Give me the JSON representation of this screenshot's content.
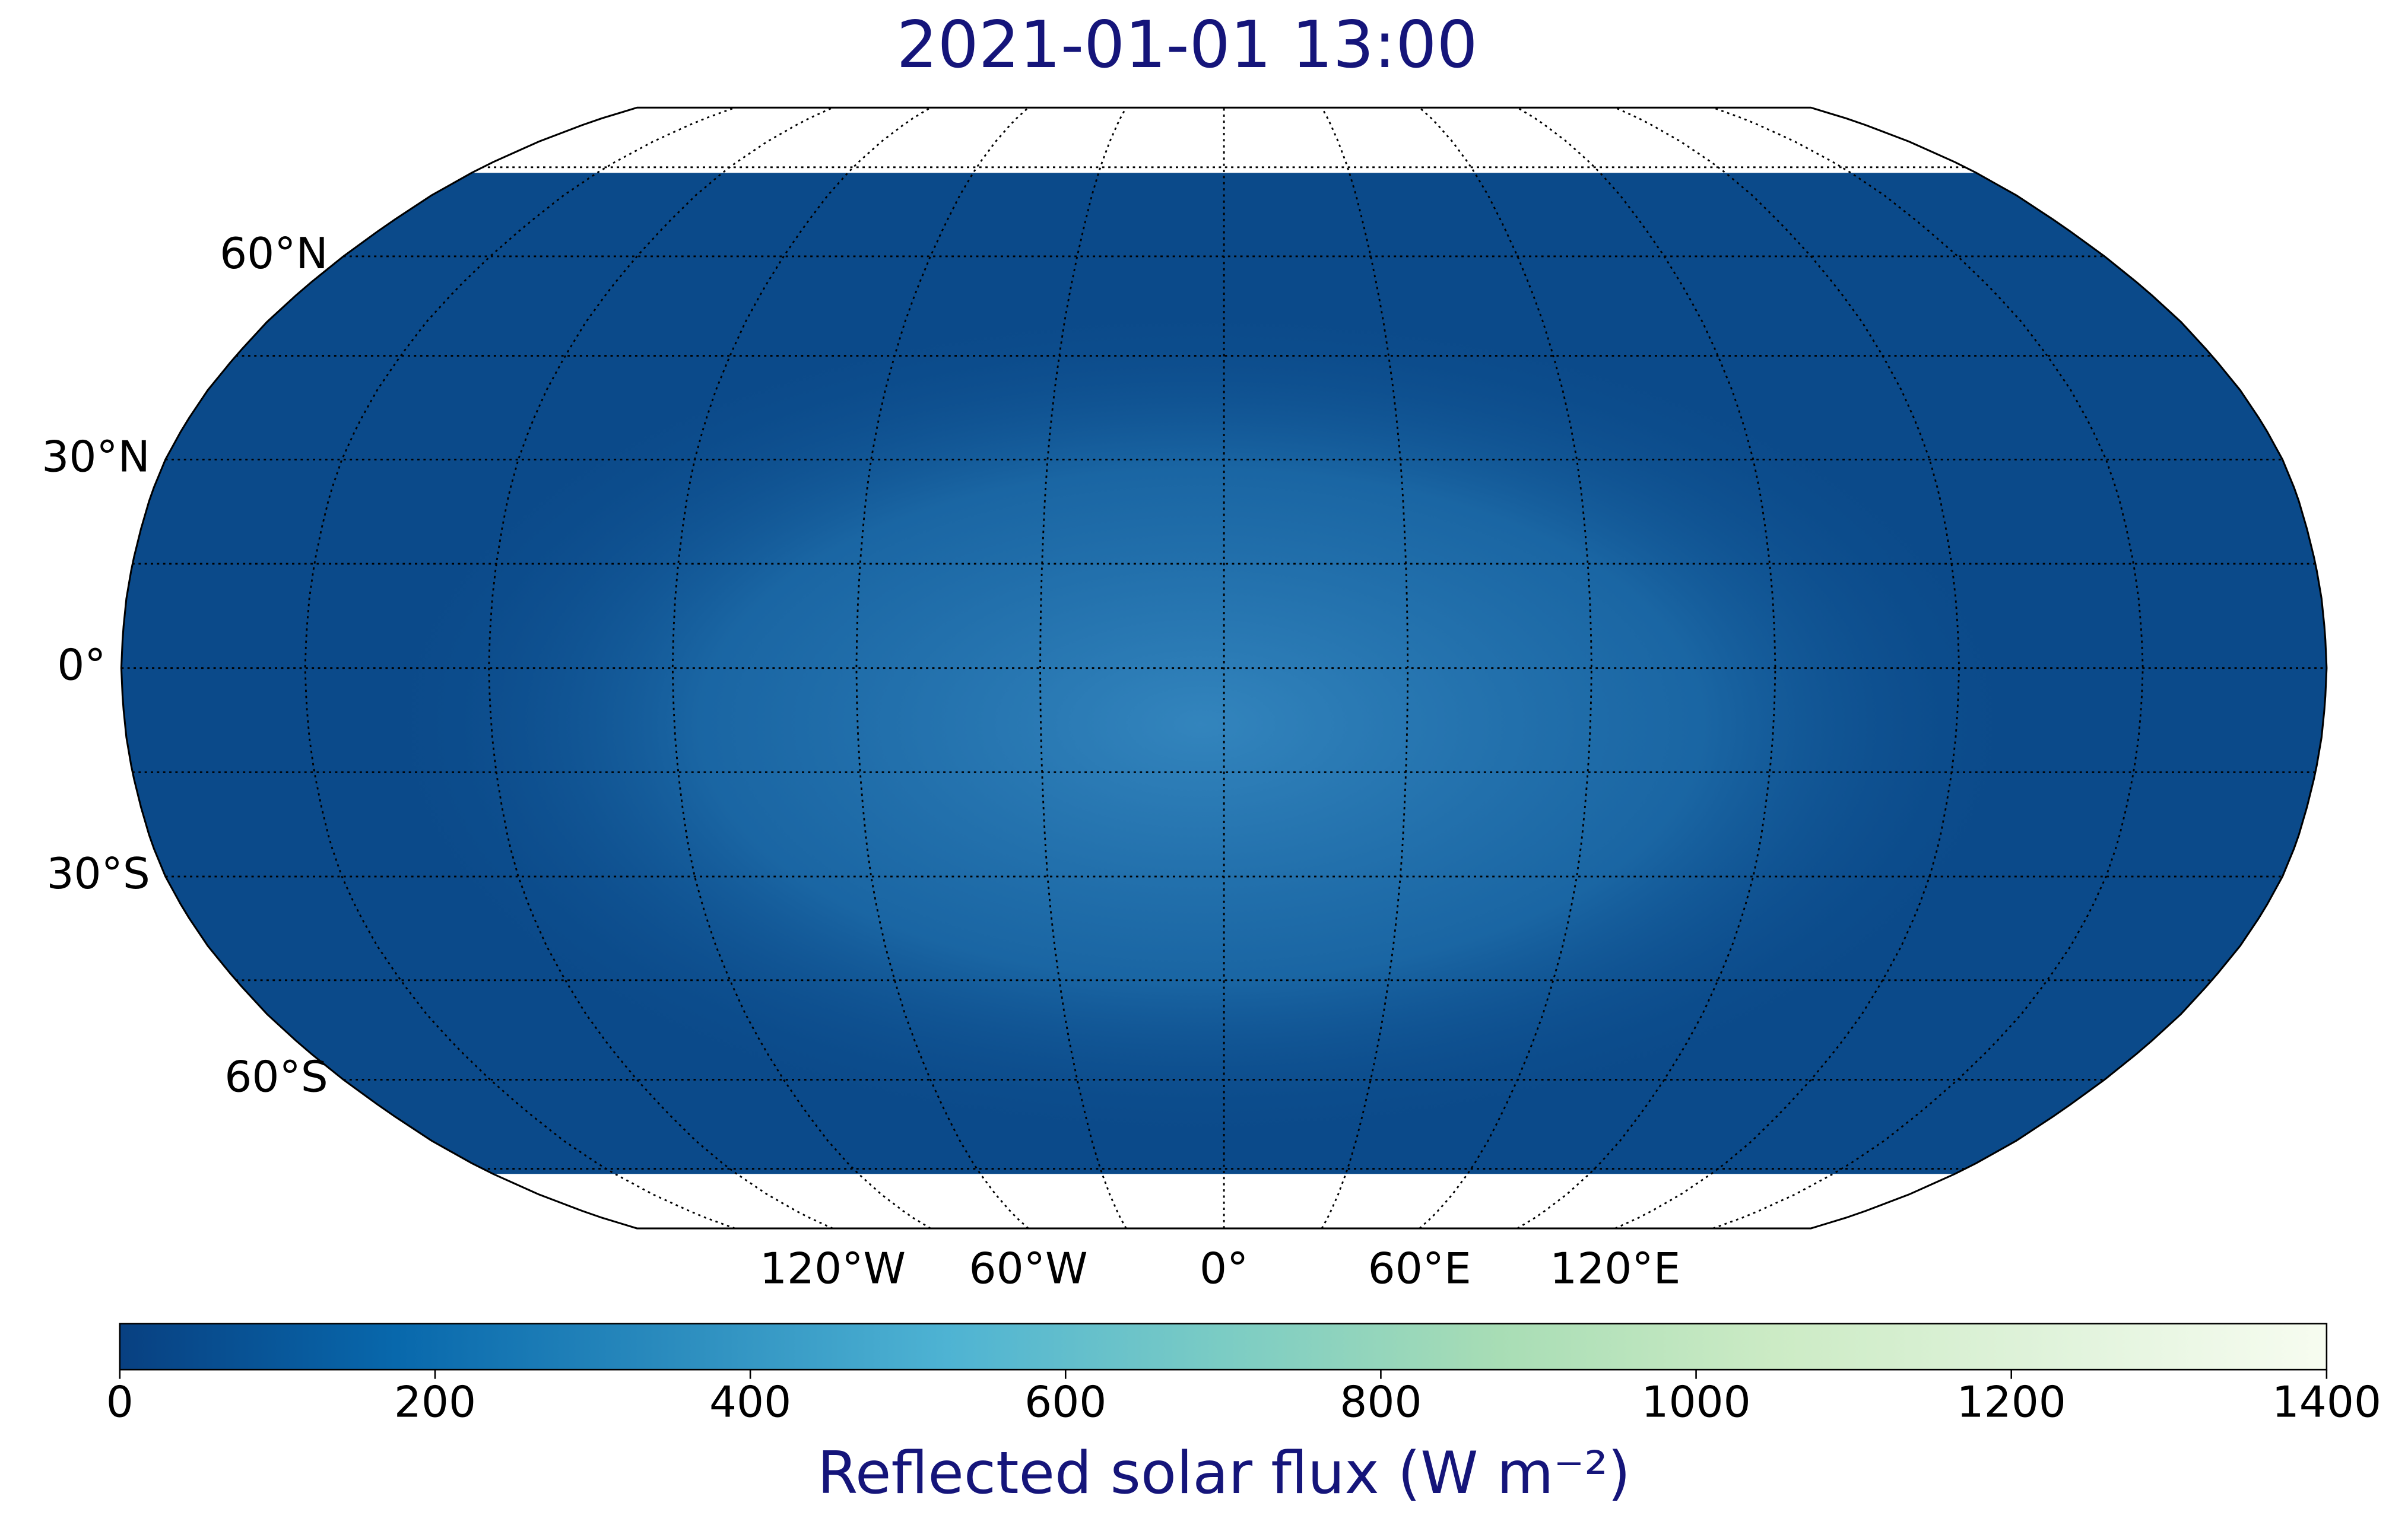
{
  "title": "2021-01-01 13:00",
  "map": {
    "projection": "Robinson",
    "lat_grid": [
      -75,
      -60,
      -45,
      -30,
      -15,
      0,
      15,
      30,
      45,
      60,
      75
    ],
    "lon_grid": [
      -150,
      -120,
      -90,
      -60,
      -30,
      0,
      30,
      60,
      90,
      120,
      150
    ],
    "lat_ticks": [
      {
        "value": 60,
        "label": "60°N"
      },
      {
        "value": 30,
        "label": "30°N"
      },
      {
        "value": 0,
        "label": "0°"
      },
      {
        "value": -30,
        "label": "30°S"
      },
      {
        "value": -60,
        "label": "60°S"
      }
    ],
    "lon_ticks": [
      {
        "value": -120,
        "label": "120°W"
      },
      {
        "value": -60,
        "label": "60°W"
      },
      {
        "value": 0,
        "label": "0°"
      },
      {
        "value": 60,
        "label": "60°E"
      },
      {
        "value": 120,
        "label": "120°E"
      }
    ]
  },
  "colorbar": {
    "label": "Reflected solar flux (W m⁻²)",
    "lim": [
      0,
      1400
    ],
    "ticks": [
      0,
      200,
      400,
      600,
      800,
      1000,
      1200,
      1400
    ],
    "colors": [
      "#084081",
      "#0868ac",
      "#2b8cbe",
      "#4eb3d3",
      "#7bccc4",
      "#a8ddb5",
      "#ccebc5",
      "#e0f3db",
      "#f7fcf0"
    ]
  }
}
